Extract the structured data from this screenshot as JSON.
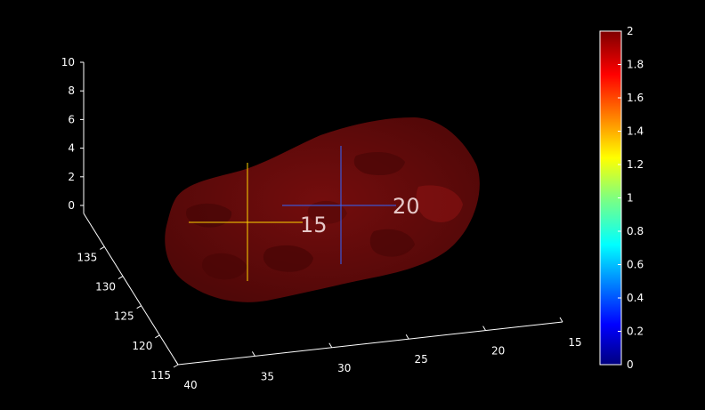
{
  "colors": {
    "background": "#000000",
    "axis": "#ffffff",
    "surface_fill": "#6b0c0c",
    "surface_shade": "#4a0606",
    "marker_15": "#ffd400",
    "marker_20": "#3366ff",
    "marker_text": "#e6c8c8"
  },
  "axes": {
    "z": {
      "ticks": [
        "10",
        "8",
        "6",
        "4",
        "2",
        "0"
      ]
    },
    "y": {
      "ticks": [
        "135",
        "130",
        "125",
        "120",
        "115"
      ]
    },
    "x": {
      "ticks": [
        "40",
        "35",
        "30",
        "25",
        "20",
        "15"
      ]
    }
  },
  "markers": [
    {
      "label": "15",
      "color": "#ffd400"
    },
    {
      "label": "20",
      "color": "#3366ff"
    }
  ],
  "colorbar": {
    "colormap": "jet",
    "ticks": [
      "2",
      "1.8",
      "1.6",
      "1.4",
      "1.2",
      "1",
      "0.8",
      "0.6",
      "0.4",
      "0.2",
      "0"
    ]
  }
}
